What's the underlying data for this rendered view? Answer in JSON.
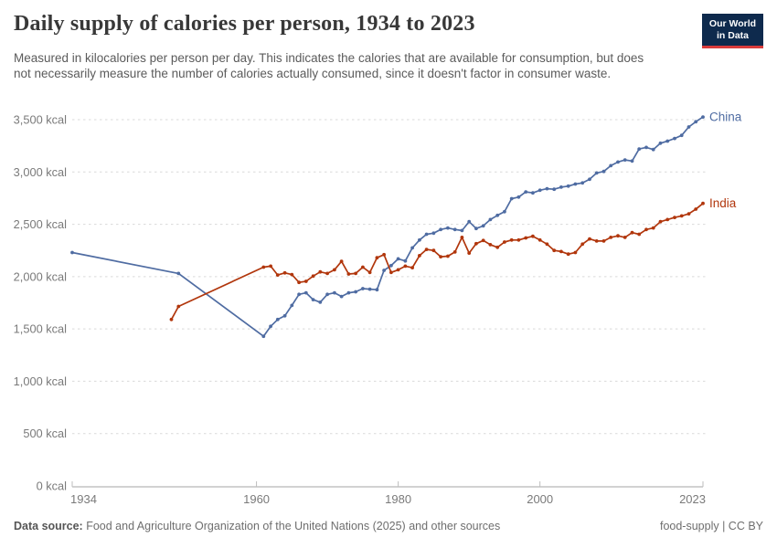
{
  "header": {
    "title": "Daily supply of calories per person, 1934 to 2023",
    "subtitle": "Measured in kilocalories per person per day. This indicates the calories that are available for consumption, but does not necessarily measure the number of calories actually consumed, since it doesn't factor in consumer waste.",
    "logo": {
      "line1": "Our World",
      "line2": "in Data",
      "bg_color": "#0e2a4d",
      "accent_color": "#d93b3b"
    }
  },
  "footer": {
    "datasource_label": "Data source:",
    "datasource_text": " Food and Agriculture Organization of the United Nations (2025) and other sources",
    "note_right": "food-supply | CC BY"
  },
  "chart_data": {
    "type": "line",
    "title": "Daily supply of calories per person, 1934 to 2023",
    "unit": "kcal per person per day",
    "x_axis": {
      "range": [
        1934,
        2023
      ],
      "ticks": [
        1934,
        1960,
        1980,
        2000,
        2023
      ]
    },
    "y_axis": {
      "range": [
        0,
        3500
      ],
      "ticks": [
        0,
        500,
        1000,
        1500,
        2000,
        2500,
        3000,
        3500
      ],
      "tick_suffix": " kcal",
      "gridlines": "dashed"
    },
    "legend_position": "end-of-line-labels",
    "colors": {
      "grid": "#d9d9d9",
      "axis": "#a6a6a6",
      "tick": "#bdbdbd",
      "axis_text": "#7a7a7a"
    },
    "series": [
      {
        "name": "China",
        "color": "#4f6ca2",
        "points": [
          [
            1934,
            2230
          ],
          [
            1949,
            2030
          ],
          [
            1961,
            1430
          ],
          [
            1962,
            1525
          ],
          [
            1963,
            1590
          ],
          [
            1964,
            1625
          ],
          [
            1965,
            1725
          ],
          [
            1966,
            1830
          ],
          [
            1967,
            1845
          ],
          [
            1968,
            1780
          ],
          [
            1969,
            1755
          ],
          [
            1970,
            1830
          ],
          [
            1971,
            1845
          ],
          [
            1972,
            1810
          ],
          [
            1973,
            1845
          ],
          [
            1974,
            1855
          ],
          [
            1975,
            1885
          ],
          [
            1976,
            1880
          ],
          [
            1977,
            1875
          ],
          [
            1978,
            2060
          ],
          [
            1979,
            2105
          ],
          [
            1980,
            2170
          ],
          [
            1981,
            2150
          ],
          [
            1982,
            2275
          ],
          [
            1983,
            2350
          ],
          [
            1984,
            2405
          ],
          [
            1985,
            2415
          ],
          [
            1986,
            2450
          ],
          [
            1987,
            2465
          ],
          [
            1988,
            2450
          ],
          [
            1989,
            2440
          ],
          [
            1990,
            2525
          ],
          [
            1991,
            2460
          ],
          [
            1992,
            2485
          ],
          [
            1993,
            2545
          ],
          [
            1994,
            2585
          ],
          [
            1995,
            2620
          ],
          [
            1996,
            2745
          ],
          [
            1997,
            2760
          ],
          [
            1998,
            2810
          ],
          [
            1999,
            2800
          ],
          [
            2000,
            2825
          ],
          [
            2001,
            2840
          ],
          [
            2002,
            2835
          ],
          [
            2003,
            2855
          ],
          [
            2004,
            2865
          ],
          [
            2005,
            2885
          ],
          [
            2006,
            2895
          ],
          [
            2007,
            2930
          ],
          [
            2008,
            2990
          ],
          [
            2009,
            3005
          ],
          [
            2010,
            3060
          ],
          [
            2011,
            3095
          ],
          [
            2012,
            3115
          ],
          [
            2013,
            3105
          ],
          [
            2014,
            3220
          ],
          [
            2015,
            3235
          ],
          [
            2016,
            3215
          ],
          [
            2017,
            3275
          ],
          [
            2018,
            3295
          ],
          [
            2019,
            3320
          ],
          [
            2020,
            3350
          ],
          [
            2021,
            3430
          ],
          [
            2022,
            3480
          ],
          [
            2023,
            3525
          ]
        ]
      },
      {
        "name": "India",
        "color": "#b1360c",
        "points": [
          [
            1948,
            1590
          ],
          [
            1949,
            1715
          ],
          [
            1961,
            2090
          ],
          [
            1962,
            2100
          ],
          [
            1963,
            2015
          ],
          [
            1964,
            2035
          ],
          [
            1965,
            2020
          ],
          [
            1966,
            1945
          ],
          [
            1967,
            1955
          ],
          [
            1968,
            2005
          ],
          [
            1969,
            2045
          ],
          [
            1970,
            2030
          ],
          [
            1971,
            2065
          ],
          [
            1972,
            2145
          ],
          [
            1973,
            2025
          ],
          [
            1974,
            2030
          ],
          [
            1975,
            2090
          ],
          [
            1976,
            2040
          ],
          [
            1977,
            2180
          ],
          [
            1978,
            2210
          ],
          [
            1979,
            2040
          ],
          [
            1980,
            2065
          ],
          [
            1981,
            2100
          ],
          [
            1982,
            2085
          ],
          [
            1983,
            2200
          ],
          [
            1984,
            2260
          ],
          [
            1985,
            2250
          ],
          [
            1986,
            2190
          ],
          [
            1987,
            2195
          ],
          [
            1988,
            2235
          ],
          [
            1989,
            2375
          ],
          [
            1990,
            2225
          ],
          [
            1991,
            2315
          ],
          [
            1992,
            2345
          ],
          [
            1993,
            2305
          ],
          [
            1994,
            2280
          ],
          [
            1995,
            2330
          ],
          [
            1996,
            2350
          ],
          [
            1997,
            2350
          ],
          [
            1998,
            2370
          ],
          [
            1999,
            2385
          ],
          [
            2000,
            2350
          ],
          [
            2001,
            2310
          ],
          [
            2002,
            2250
          ],
          [
            2003,
            2240
          ],
          [
            2004,
            2215
          ],
          [
            2005,
            2230
          ],
          [
            2006,
            2310
          ],
          [
            2007,
            2360
          ],
          [
            2008,
            2340
          ],
          [
            2009,
            2340
          ],
          [
            2010,
            2375
          ],
          [
            2011,
            2390
          ],
          [
            2012,
            2375
          ],
          [
            2013,
            2420
          ],
          [
            2014,
            2405
          ],
          [
            2015,
            2450
          ],
          [
            2016,
            2465
          ],
          [
            2017,
            2525
          ],
          [
            2018,
            2545
          ],
          [
            2019,
            2565
          ],
          [
            2020,
            2580
          ],
          [
            2021,
            2600
          ],
          [
            2022,
            2645
          ],
          [
            2023,
            2700
          ]
        ]
      }
    ]
  }
}
